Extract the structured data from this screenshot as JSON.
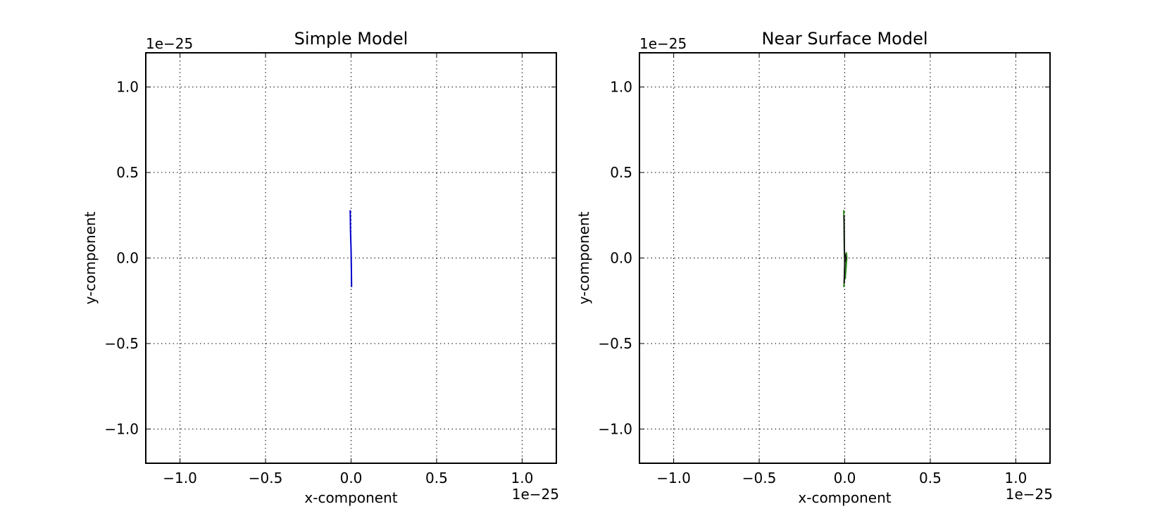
{
  "chart_data": [
    {
      "type": "line",
      "title": "Simple Model",
      "xlabel": "x-component",
      "ylabel": "y-component",
      "xlim": [
        -1.2,
        1.2
      ],
      "ylim": [
        -1.2,
        1.2
      ],
      "x_offset_text": "1e−25",
      "y_offset_text": "1e−25",
      "x_ticks": [
        -1.0,
        -0.5,
        0.0,
        0.5,
        1.0
      ],
      "x_tick_labels": [
        "−1.0",
        "−0.5",
        "0.0",
        "0.5",
        "1.0"
      ],
      "y_ticks": [
        1.0,
        0.5,
        0.0,
        -0.5,
        -1.0
      ],
      "y_tick_labels": [
        "1.0",
        "0.5",
        "0.0",
        "−0.5",
        "−1.0"
      ],
      "grid": true,
      "series": [
        {
          "color": "#0000cc",
          "x": [
            -0.005,
            -0.003,
            0.0,
            0.002,
            0.003
          ],
          "y": [
            0.28,
            0.15,
            0.05,
            -0.08,
            -0.17
          ]
        }
      ]
    },
    {
      "type": "line",
      "title": "Near Surface Model",
      "xlabel": "x-component",
      "ylabel": "y-component",
      "xlim": [
        -1.2,
        1.2
      ],
      "ylim": [
        -1.2,
        1.2
      ],
      "x_offset_text": "1e−25",
      "y_offset_text": "1e−25",
      "x_ticks": [
        -1.0,
        -0.5,
        0.0,
        0.5,
        1.0
      ],
      "x_tick_labels": [
        "−1.0",
        "−0.5",
        "0.0",
        "0.5",
        "1.0"
      ],
      "y_ticks": [
        1.0,
        0.5,
        0.0,
        -0.5,
        -1.0
      ],
      "y_tick_labels": [
        "1.0",
        "0.5",
        "0.0",
        "−0.5",
        "−1.0"
      ],
      "grid": true,
      "series": [
        {
          "color": "#2e8b1e",
          "x": [
            -0.006,
            -0.004,
            -0.003,
            -0.002,
            0.0,
            0.003,
            0.012,
            0.01,
            0.005,
            0.003,
            0.001,
            -0.002,
            -0.004,
            -0.006
          ],
          "y": [
            0.28,
            0.2,
            0.1,
            0.02,
            -0.05,
            -0.12,
            0.0,
            0.03,
            0.02,
            0.0,
            -0.03,
            -0.1,
            -0.15,
            -0.17
          ]
        },
        {
          "color": "#1a1a1a",
          "x": [
            -0.004,
            -0.003,
            -0.002,
            0.0,
            0.003,
            0.008,
            0.003,
            0.0,
            -0.002,
            -0.003
          ],
          "y": [
            0.25,
            0.15,
            0.05,
            0.0,
            -0.02,
            0.0,
            0.02,
            -0.02,
            -0.1,
            -0.15
          ]
        }
      ]
    }
  ]
}
